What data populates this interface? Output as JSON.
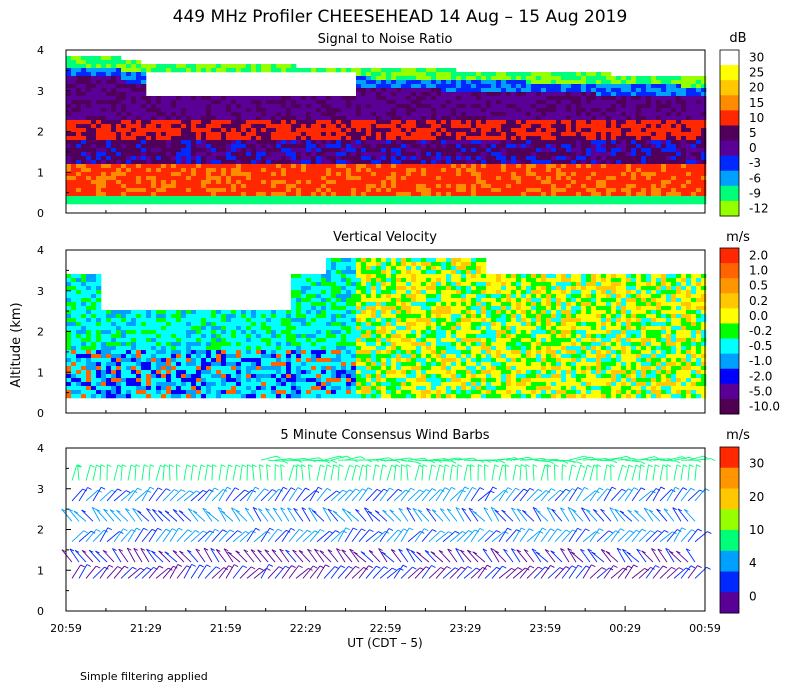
{
  "title": "449 MHz Profiler CHEESEHEAD 14 Aug – 15 Aug 2019",
  "ylabel": "Altitude (km)",
  "xlabel": "UT  (CDT – 5)",
  "footnote": "Simple filtering applied",
  "x_ticks": [
    "20:59",
    "21:29",
    "21:59",
    "22:29",
    "22:59",
    "23:29",
    "23:59",
    "00:29",
    "00:59"
  ],
  "y_ticks": [
    "0",
    "1",
    "2",
    "3",
    "4"
  ],
  "chart_data": [
    {
      "type": "heatmap",
      "title": "Signal to Noise Ratio",
      "unit": "dB",
      "x_range": [
        "20:59",
        "00:59"
      ],
      "ylim": [
        0,
        4
      ],
      "colorbar_levels": [
        "30",
        "25",
        "20",
        "15",
        "10",
        "5",
        "0",
        "-3",
        "-6",
        "-9",
        "-12"
      ],
      "colorbar_colors": [
        "#ffffff",
        "#ffff00",
        "#ffc800",
        "#ff8c00",
        "#ff2800",
        "#50005a",
        "#5a0096",
        "#0028ff",
        "#00a0ff",
        "#00ff78",
        "#96ff00"
      ],
      "features": [
        {
          "layer_km": [
            0.5,
            1.2
          ],
          "snr_db": 10
        },
        {
          "layer_km": [
            1.8,
            2.3
          ],
          "snr_db": 8
        },
        {
          "layer_km": [
            2.3,
            3.5
          ],
          "snr_db": 2
        },
        {
          "layer_km": [
            3.3,
            3.8
          ],
          "snr_db": -9
        }
      ]
    },
    {
      "type": "heatmap",
      "title": "Vertical Velocity",
      "unit": "m/s",
      "x_range": [
        "20:59",
        "00:59"
      ],
      "ylim": [
        0,
        4
      ],
      "colorbar_levels": [
        "2.0",
        "1.0",
        "0.5",
        "0.2",
        "0.0",
        "-0.2",
        "-0.5",
        "-1.0",
        "-2.0",
        "-5.0",
        "-10.0"
      ],
      "colorbar_colors": [
        "#ff2800",
        "#ff6400",
        "#ff9600",
        "#ffc800",
        "#ffff00",
        "#00ff00",
        "#00ffff",
        "#00a0ff",
        "#0000ff",
        "#5a0096",
        "#500050"
      ],
      "features": [
        {
          "layer_km": [
            0.4,
            3.5
          ],
          "time": [
            "20:59",
            "22:29"
          ],
          "w_ms": -0.5
        },
        {
          "layer_km": [
            0.4,
            4.0
          ],
          "time": [
            "22:29",
            "00:59"
          ],
          "w_ms": 0.0
        }
      ]
    },
    {
      "type": "wind-barbs",
      "title": "5 Minute Consensus Wind Barbs",
      "unit": "m/s",
      "x_range": [
        "20:59",
        "00:59"
      ],
      "ylim": [
        0,
        4
      ],
      "colorbar_levels": [
        "30",
        "20",
        "10",
        "4",
        "0"
      ],
      "colorbar_colors": [
        "#ff2800",
        "#ff9600",
        "#ffc800",
        "#96ff00",
        "#00ff78",
        "#00a0ff",
        "#0028ff",
        "#5a0096"
      ],
      "features": [
        {
          "layer_km": [
            0.5,
            1.5
          ],
          "speed_ms": 3
        },
        {
          "layer_km": [
            1.5,
            3.0
          ],
          "speed_ms": 5
        },
        {
          "layer_km": [
            3.0,
            4.0
          ],
          "speed_ms": 8
        }
      ]
    }
  ]
}
